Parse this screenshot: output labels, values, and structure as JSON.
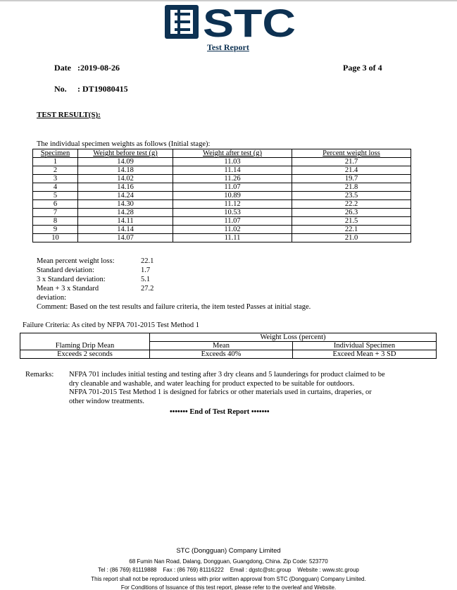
{
  "header": {
    "logo_text": "STC",
    "title": "Test Report",
    "date_label": "Date",
    "date": ":2019-08-26",
    "page": "Page 3 of 4",
    "no_label": "No.",
    "no": ": DT19080415"
  },
  "section_title": "TEST RESULT(S):",
  "table_caption": "The individual specimen weights as follows (Initial stage):",
  "columns": [
    "Specimen",
    "Weight before test (g)",
    "Weight after test (g)",
    "Percent weight loss"
  ],
  "rows": [
    [
      "1",
      "14.09",
      "11.03",
      "21.7"
    ],
    [
      "2",
      "14.18",
      "11.14",
      "21.4"
    ],
    [
      "3",
      "14.02",
      "11.26",
      "19.7"
    ],
    [
      "4",
      "14.16",
      "11.07",
      "21.8"
    ],
    [
      "5",
      "14.24",
      "10.89",
      "23.5"
    ],
    [
      "6",
      "14.30",
      "11.12",
      "22.2"
    ],
    [
      "7",
      "14.28",
      "10.53",
      "26.3"
    ],
    [
      "8",
      "14.11",
      "11.07",
      "21.5"
    ],
    [
      "9",
      "14.14",
      "11.02",
      "22.1"
    ],
    [
      "10",
      "14.07",
      "11.11",
      "21.0"
    ]
  ],
  "stats": [
    {
      "label": "Mean percent weight loss:",
      "value": "22.1"
    },
    {
      "label": "Standard deviation:",
      "value": "1.7"
    },
    {
      "label": "3 x Standard deviation:",
      "value": "5.1"
    },
    {
      "label": "Mean + 3 x Standard",
      "value": "27.2"
    },
    {
      "label": "deviation:",
      "value": ""
    }
  ],
  "comment": "Comment: Based on the test results and failure criteria, the item tested Passes at initial stage.",
  "failure": {
    "caption": "Failure Criteria: As cited by NFPA 701-2015 Test Method 1",
    "group_header": "Weight Loss (percent)",
    "cols": [
      "Flaming Drip Mean",
      "Mean",
      "Individual Specimen"
    ],
    "values": [
      "Exceeds 2 seconds",
      "Exceeds 40%",
      "Exceed Mean + 3 SD"
    ]
  },
  "remarks": {
    "label": "Remarks:",
    "lines": [
      "NFPA 701 includes initial testing and testing after 3 dry cleans and 5 launderings for product claimed to be",
      "dry cleanable and washable, and water leaching for product expected to be suitable for outdoors.",
      "NFPA 701-2015 Test Method 1 is designed for fabrics or other materials used in curtains, draperies, or",
      "other window treatments."
    ]
  },
  "end": "••••••• End of Test Report •••••••",
  "footer": {
    "company": "STC (Dongguan) Company Limited",
    "address": "68 Fumin Nan Road, Dalang, Dongguan, Guangdong, China. Zip Code: 523770",
    "contact": "Tel : (86 769) 81119888    Fax : (86 769) 81116222    Email : dgstc@stc.group    Website : www.stc.group",
    "notice1": "This report shall not be reproduced unless with prior written approval from STC (Dongguan) Company Limited.",
    "notice2": "For Conditions of Issuance of this test report, please refer to the overleaf and Website."
  },
  "colors": {
    "brand": "#0d3152"
  }
}
